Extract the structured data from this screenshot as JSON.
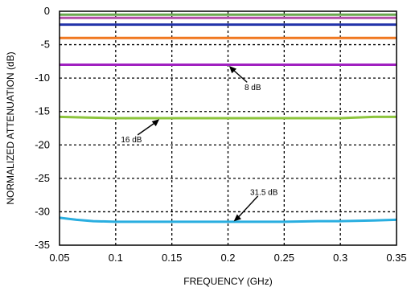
{
  "chart_data": {
    "type": "line",
    "xlabel": "FREQUENCY (GHz)",
    "ylabel": "NORMALIZED ATTENUATION (dB)",
    "xlim": [
      0.05,
      0.35
    ],
    "ylim": [
      -35,
      0
    ],
    "x_ticks": [
      0.05,
      0.1,
      0.15,
      0.2,
      0.25,
      0.3,
      0.35
    ],
    "x_tick_labels": [
      "0.05",
      "0.1",
      "0.15",
      "0.2",
      "0.25",
      "0.3",
      "0.35"
    ],
    "y_ticks": [
      0,
      -5,
      -10,
      -15,
      -20,
      -25,
      -30,
      -35
    ],
    "y_tick_labels": [
      "0",
      "-5",
      "-10",
      "-15",
      "-20",
      "-25",
      "-30",
      "-35"
    ],
    "grid": true,
    "series": [
      {
        "color": "#6aa84f",
        "x": [
          0.05,
          0.1,
          0.15,
          0.2,
          0.25,
          0.3,
          0.35
        ],
        "y": [
          -0.5,
          -0.5,
          -0.5,
          -0.5,
          -0.5,
          -0.5,
          -0.5
        ]
      },
      {
        "color": "#b34fa8",
        "x": [
          0.05,
          0.1,
          0.15,
          0.2,
          0.25,
          0.3,
          0.35
        ],
        "y": [
          -1.0,
          -1.0,
          -1.0,
          -1.0,
          -1.0,
          -1.0,
          -1.0
        ]
      },
      {
        "color": "#2233aa",
        "x": [
          0.05,
          0.1,
          0.15,
          0.2,
          0.25,
          0.3,
          0.35
        ],
        "y": [
          -2.0,
          -2.0,
          -2.0,
          -2.0,
          -2.0,
          -2.0,
          -2.0
        ]
      },
      {
        "color": "#f07820",
        "x": [
          0.05,
          0.1,
          0.15,
          0.2,
          0.25,
          0.3,
          0.35
        ],
        "y": [
          -4.0,
          -4.0,
          -4.0,
          -4.0,
          -4.0,
          -4.0,
          -4.0
        ]
      },
      {
        "color": "#a020c0",
        "x": [
          0.05,
          0.1,
          0.15,
          0.2,
          0.25,
          0.3,
          0.35
        ],
        "y": [
          -8.0,
          -8.0,
          -8.0,
          -8.0,
          -8.0,
          -8.0,
          -8.0
        ]
      },
      {
        "color": "#8cc43c",
        "x": [
          0.05,
          0.075,
          0.1,
          0.15,
          0.2,
          0.25,
          0.3,
          0.33,
          0.35
        ],
        "y": [
          -15.8,
          -15.9,
          -16.0,
          -16.0,
          -16.0,
          -16.0,
          -16.0,
          -15.8,
          -15.8
        ]
      },
      {
        "color": "#29aee0",
        "x": [
          0.05,
          0.065,
          0.08,
          0.1,
          0.15,
          0.2,
          0.25,
          0.28,
          0.3,
          0.33,
          0.35
        ],
        "y": [
          -30.9,
          -31.2,
          -31.4,
          -31.5,
          -31.5,
          -31.5,
          -31.5,
          -31.4,
          -31.4,
          -31.3,
          -31.2
        ]
      }
    ],
    "annotations": [
      {
        "text": "8 dB",
        "arrow_to": [
          0.2,
          -8.0
        ],
        "label_at": [
          0.222,
          -11.8
        ]
      },
      {
        "text": "16 dB",
        "arrow_to": [
          0.14,
          -16.0
        ],
        "label_at": [
          0.114,
          -19.6
        ]
      },
      {
        "text": "31.5 dB",
        "arrow_to": [
          0.204,
          -31.6
        ],
        "label_at": [
          0.232,
          -27.5
        ]
      }
    ]
  }
}
